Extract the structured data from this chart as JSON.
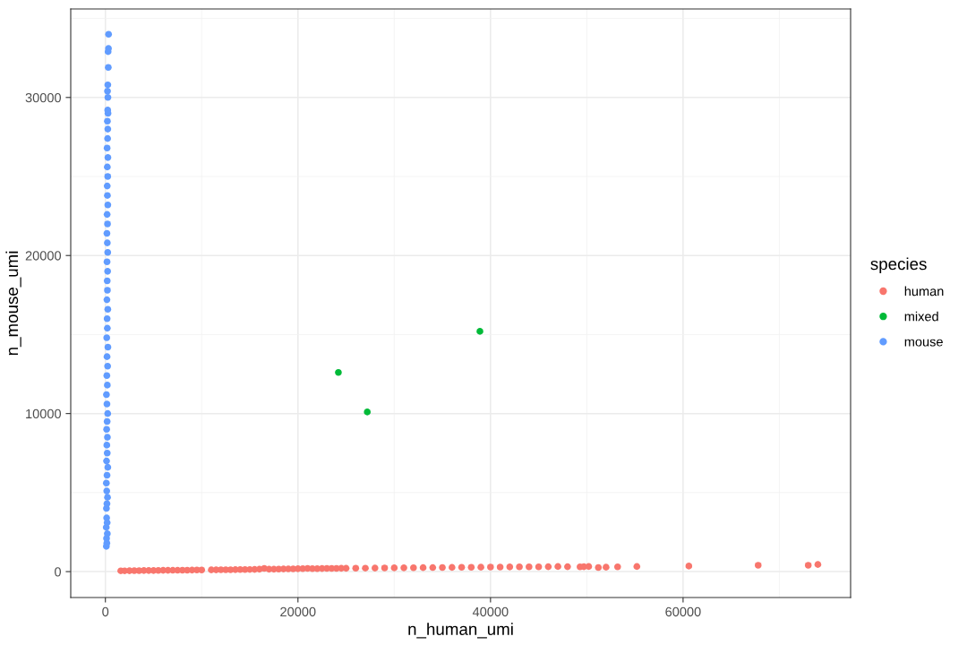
{
  "chart_data": {
    "type": "scatter",
    "xlabel": "n_human_umi",
    "ylabel": "n_mouse_umi",
    "legend_title": "species",
    "xlim": [
      -3600,
      77400
    ],
    "ylim": [
      -1640,
      35600
    ],
    "xticks": [
      0,
      20000,
      40000,
      60000
    ],
    "yticks": [
      0,
      10000,
      20000,
      30000
    ],
    "grid": true,
    "legend": "right",
    "marker": "circle",
    "series": [
      {
        "name": "human",
        "color": "#f8766d",
        "x": [
          1600,
          2000,
          2500,
          3000,
          3500,
          4000,
          4500,
          5000,
          5500,
          6000,
          6500,
          7000,
          7500,
          8000,
          8500,
          9000,
          9500,
          10000,
          11000,
          11500,
          12000,
          12500,
          13000,
          13500,
          14000,
          14500,
          15000,
          15500,
          16000,
          16500,
          17000,
          17500,
          18000,
          18500,
          19000,
          19500,
          20000,
          20500,
          21000,
          21500,
          22000,
          22500,
          23000,
          23500,
          24000,
          24500,
          25000,
          26000,
          27000,
          28000,
          29000,
          30000,
          31000,
          32000,
          33000,
          34000,
          35000,
          36000,
          37000,
          38000,
          39000,
          40000,
          41000,
          42000,
          43000,
          44000,
          45000,
          46000,
          47000,
          48000,
          49300,
          49700,
          50200,
          51200,
          52000,
          53200,
          55200,
          60600,
          67800,
          73000,
          74000
        ],
        "values": [
          50,
          50,
          55,
          60,
          60,
          65,
          70,
          70,
          75,
          80,
          80,
          85,
          85,
          90,
          90,
          95,
          100,
          100,
          110,
          110,
          115,
          120,
          120,
          125,
          130,
          130,
          135,
          140,
          150,
          200,
          150,
          155,
          160,
          165,
          170,
          175,
          180,
          190,
          200,
          190,
          190,
          195,
          200,
          200,
          205,
          210,
          210,
          215,
          220,
          225,
          230,
          235,
          240,
          245,
          250,
          255,
          260,
          265,
          270,
          275,
          280,
          285,
          290,
          295,
          300,
          300,
          300,
          310,
          320,
          310,
          300,
          310,
          320,
          260,
          280,
          300,
          320,
          350,
          400,
          400,
          450
        ]
      },
      {
        "name": "mixed",
        "color": "#00ba38",
        "x": [
          24200,
          27200,
          38900
        ],
        "values": [
          12600,
          10100,
          15200
        ]
      },
      {
        "name": "mouse",
        "color": "#619cff",
        "x": [
          100,
          150,
          120,
          200,
          90,
          180,
          130,
          110,
          160,
          220,
          140,
          100,
          170,
          250,
          120,
          190,
          150,
          210,
          130,
          180,
          240,
          160,
          110,
          200,
          150,
          230,
          170,
          260,
          140,
          200,
          180,
          250,
          160,
          210,
          190,
          230,
          170,
          240,
          200,
          160,
          220,
          180,
          250,
          210,
          190,
          240,
          200,
          260,
          180,
          230,
          250,
          210,
          270,
          240,
          260,
          220,
          250,
          300,
          280,
          320,
          330
        ],
        "values": [
          1600,
          1800,
          2100,
          2400,
          2800,
          3100,
          3400,
          4000,
          4300,
          4700,
          5100,
          5600,
          6100,
          6600,
          7000,
          7500,
          8000,
          8500,
          9000,
          9500,
          10000,
          10600,
          11200,
          11800,
          12400,
          13000,
          13600,
          14200,
          14800,
          15400,
          16000,
          16600,
          17200,
          17800,
          18400,
          19000,
          19600,
          20200,
          20800,
          21400,
          22000,
          22600,
          23200,
          23800,
          24400,
          25000,
          25600,
          26200,
          26800,
          27400,
          28000,
          28500,
          29000,
          29200,
          30000,
          30400,
          30800,
          31900,
          32900,
          33100,
          34000
        ]
      }
    ]
  }
}
